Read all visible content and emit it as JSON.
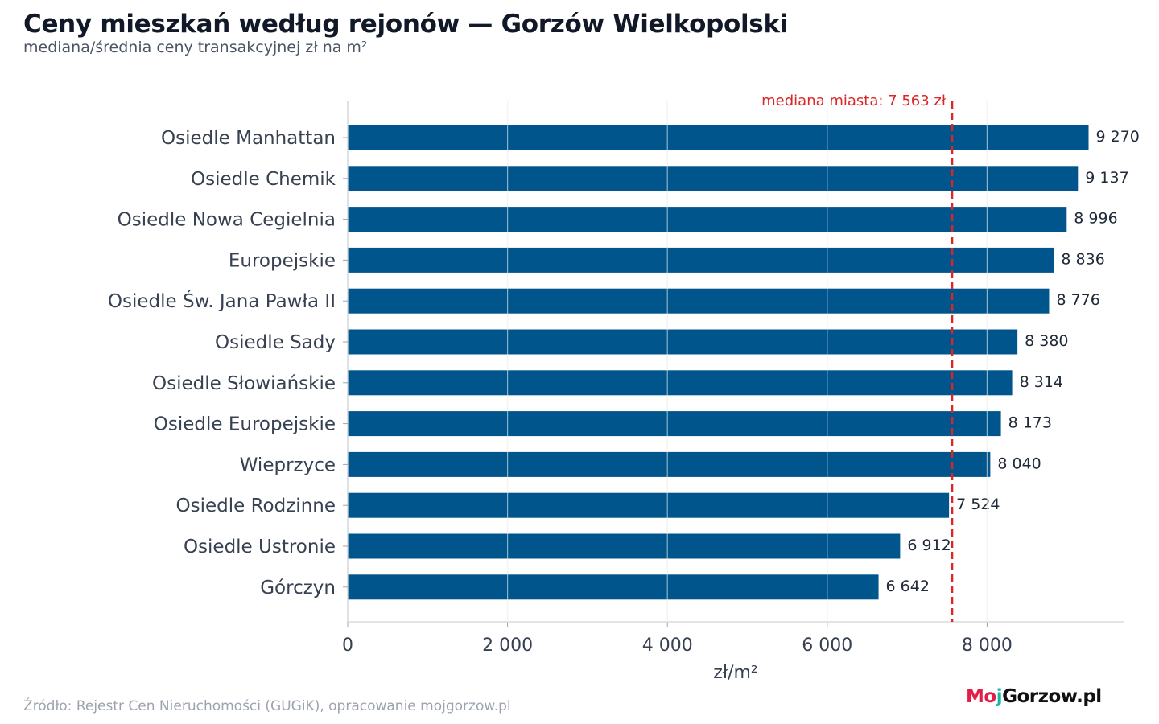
{
  "header": {
    "title": "Ceny mieszkań według rejonów — Gorzów Wielkopolski",
    "subtitle": "mediana/średnia ceny transakcyjnej zł na m²"
  },
  "footer": {
    "source": "Źródło: Rejestr Cen Nieruchomości (GUGiK), opracowanie mojgorzow.pl",
    "logo": {
      "part1": "Mo",
      "part2": "j",
      "part3": "Gorzow.pl"
    }
  },
  "chart_data": {
    "type": "bar",
    "orientation": "horizontal",
    "categories": [
      "Osiedle Manhattan",
      "Osiedle Chemik",
      "Osiedle Nowa Cegielnia",
      "Europejskie",
      "Osiedle Św. Jana Pawła II",
      "Osiedle Sady",
      "Osiedle Słowiańskie",
      "Osiedle Europejskie",
      "Wieprzyce",
      "Osiedle Rodzinne",
      "Osiedle Ustronie",
      "Górczyn"
    ],
    "values": [
      9270,
      9137,
      8996,
      8836,
      8776,
      8380,
      8314,
      8173,
      8040,
      7524,
      6912,
      6642
    ],
    "value_labels": [
      "9 270",
      "9 137",
      "8 996",
      "8 836",
      "8 776",
      "8 380",
      "8 314",
      "8 173",
      "8 040",
      "7 524",
      "6 912",
      "6 642"
    ],
    "xlabel": "zł/m²",
    "xlim": [
      0,
      9720
    ],
    "xticks": [
      0,
      2000,
      4000,
      6000,
      8000
    ],
    "xtick_labels": [
      "0",
      "2 000",
      "4 000",
      "6 000",
      "8 000"
    ],
    "grid": "vertical",
    "bar_color": "#00558c",
    "reference_line": {
      "value": 7563,
      "label": "mediana miasta: 7 563 zł",
      "color": "#dc2626",
      "style": "dashed"
    }
  }
}
